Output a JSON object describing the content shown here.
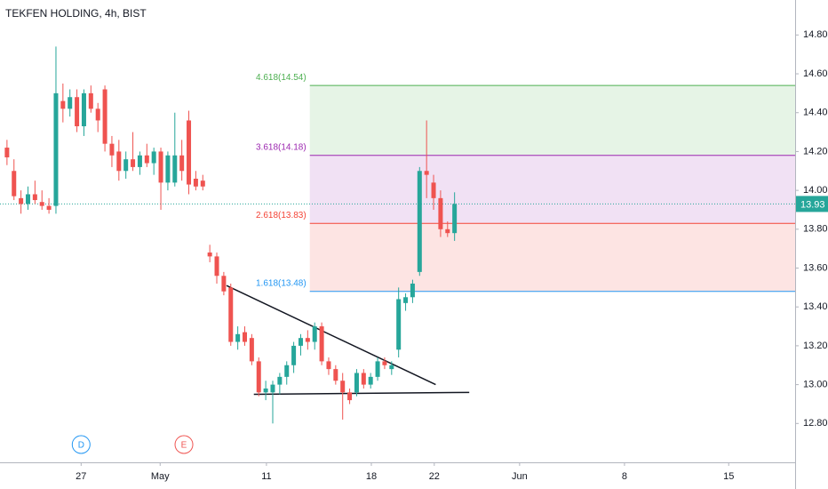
{
  "chart_data": {
    "type": "candlestick",
    "title": "TEKFEN HOLDING, 4h, BIST",
    "up_color": "#26a69a",
    "down_color": "#ef5350",
    "x": [
      1,
      2,
      3,
      4,
      5,
      6,
      7,
      8,
      9,
      10,
      11,
      12,
      13,
      14,
      15,
      16,
      17,
      18,
      19,
      20,
      21,
      22,
      23,
      24,
      25,
      26,
      27,
      28,
      29,
      30,
      31,
      32,
      33,
      34,
      35,
      36,
      37,
      38,
      39,
      40,
      41,
      42,
      43,
      44,
      45,
      46,
      47,
      48,
      49,
      50,
      51,
      52,
      53,
      54,
      55,
      56,
      57,
      58,
      59,
      60,
      61,
      62,
      63,
      64,
      65
    ],
    "open": [
      14.22,
      14.1,
      13.96,
      13.93,
      13.98,
      13.94,
      13.92,
      13.92,
      14.46,
      14.42,
      14.48,
      14.33,
      14.5,
      14.42,
      14.52,
      14.24,
      14.2,
      14.1,
      14.16,
      14.12,
      14.18,
      14.14,
      14.2,
      14.04,
      14.04,
      14.18,
      14.36,
      14.06,
      14.05,
      13.68,
      13.66,
      13.56,
      13.5,
      13.22,
      13.27,
      13.24,
      13.12,
      12.96,
      12.96,
      13.0,
      13.04,
      13.1,
      13.2,
      13.24,
      13.22,
      13.3,
      13.12,
      13.08,
      13.02,
      12.96,
      12.96,
      13.06,
      13.0,
      13.04,
      13.12,
      13.08,
      13.18,
      13.42,
      13.45,
      13.58,
      14.1,
      14.04,
      13.96,
      13.8,
      13.78
    ],
    "high": [
      14.26,
      14.16,
      14.0,
      14.02,
      14.05,
      14.0,
      13.96,
      14.74,
      14.55,
      14.52,
      14.52,
      14.52,
      14.54,
      14.45,
      14.54,
      14.28,
      14.26,
      14.2,
      14.3,
      14.2,
      14.24,
      14.22,
      14.22,
      14.2,
      14.4,
      14.26,
      14.41,
      14.1,
      14.08,
      13.72,
      13.68,
      13.58,
      13.52,
      13.3,
      13.3,
      13.26,
      13.14,
      13.02,
      13.02,
      13.06,
      13.12,
      13.22,
      13.26,
      13.28,
      13.32,
      13.32,
      13.14,
      13.1,
      13.06,
      12.98,
      13.08,
      13.08,
      13.06,
      13.14,
      13.14,
      13.12,
      13.5,
      13.47,
      13.54,
      14.12,
      14.36,
      14.08,
      14.0,
      13.84,
      13.99
    ],
    "low": [
      14.13,
      13.95,
      13.88,
      13.9,
      13.93,
      13.9,
      13.88,
      13.88,
      14.35,
      14.38,
      14.3,
      14.28,
      14.4,
      14.3,
      14.2,
      14.12,
      14.05,
      14.06,
      14.1,
      14.08,
      14.12,
      14.08,
      13.9,
      14.0,
      14.02,
      14.05,
      13.98,
      14.0,
      14.0,
      13.63,
      13.52,
      13.46,
      13.2,
      13.18,
      13.2,
      13.1,
      12.94,
      12.92,
      12.8,
      12.95,
      13.0,
      13.06,
      13.15,
      13.18,
      13.18,
      13.1,
      13.05,
      13.0,
      12.82,
      12.9,
      12.94,
      12.98,
      12.98,
      13.02,
      13.08,
      13.05,
      13.14,
      13.38,
      13.42,
      13.56,
      13.96,
      13.9,
      13.76,
      13.76,
      13.74
    ],
    "close": [
      14.17,
      13.97,
      13.93,
      13.98,
      13.95,
      13.92,
      13.9,
      14.5,
      14.42,
      14.48,
      14.33,
      14.5,
      14.42,
      14.36,
      14.24,
      14.18,
      14.1,
      14.16,
      14.12,
      14.18,
      14.14,
      14.2,
      14.04,
      14.18,
      14.18,
      14.1,
      14.03,
      14.02,
      14.02,
      13.66,
      13.56,
      13.48,
      13.22,
      13.26,
      13.22,
      13.12,
      12.96,
      12.98,
      13.0,
      13.04,
      13.1,
      13.2,
      13.24,
      13.22,
      13.3,
      13.12,
      13.08,
      13.02,
      12.96,
      12.92,
      13.06,
      13.0,
      13.04,
      13.12,
      13.1,
      13.1,
      13.44,
      13.45,
      13.52,
      14.1,
      14.08,
      13.96,
      13.8,
      13.78,
      13.93
    ],
    "xlim": [
      0,
      113.7
    ],
    "xticks": [
      {
        "value": 11.6,
        "label": "27"
      },
      {
        "value": 22.9,
        "label": "May"
      },
      {
        "value": 38.1,
        "label": "11"
      },
      {
        "value": 53.1,
        "label": "18"
      },
      {
        "value": 62.1,
        "label": "22"
      },
      {
        "value": 74.3,
        "label": "Jun"
      },
      {
        "value": 89.3,
        "label": "8"
      },
      {
        "value": 104.2,
        "label": "15"
      }
    ],
    "ylim": [
      12.6,
      14.98
    ],
    "yticks": [
      {
        "value": 12.8,
        "label": "12.80"
      },
      {
        "value": 13.0,
        "label": "13.00"
      },
      {
        "value": 13.2,
        "label": "13.20"
      },
      {
        "value": 13.4,
        "label": "13.40"
      },
      {
        "value": 13.6,
        "label": "13.60"
      },
      {
        "value": 13.8,
        "label": "13.80"
      },
      {
        "value": 14.0,
        "label": "14.00"
      },
      {
        "value": 14.2,
        "label": "14.20"
      },
      {
        "value": 14.4,
        "label": "14.40"
      },
      {
        "value": 14.6,
        "label": "14.60"
      },
      {
        "value": 14.8,
        "label": "14.80"
      }
    ],
    "last_price": 13.93,
    "last_price_color": "#26a69a",
    "fib": {
      "x_start": 44.3,
      "levels": [
        {
          "label": "4.618(14.54)",
          "value": 14.54,
          "color": "#4caf50"
        },
        {
          "label": "3.618(14.18)",
          "value": 14.18,
          "color": "#9c27b0"
        },
        {
          "label": "2.618(13.83)",
          "value": 13.83,
          "color": "#f44336"
        },
        {
          "label": "1.618(13.48)",
          "value": 13.48,
          "color": "#2196f3"
        }
      ]
    },
    "trendlines": [
      {
        "x": [
          32.4,
          62.3
        ],
        "values": [
          13.51,
          13.0
        ]
      },
      {
        "x": [
          36.3,
          67.1
        ],
        "values": [
          12.95,
          12.96
        ]
      }
    ],
    "events": [
      {
        "label": "D",
        "x": 11.6,
        "color": "#2196f3"
      },
      {
        "label": "E",
        "x": 26.3,
        "color": "#ef5350"
      }
    ]
  }
}
